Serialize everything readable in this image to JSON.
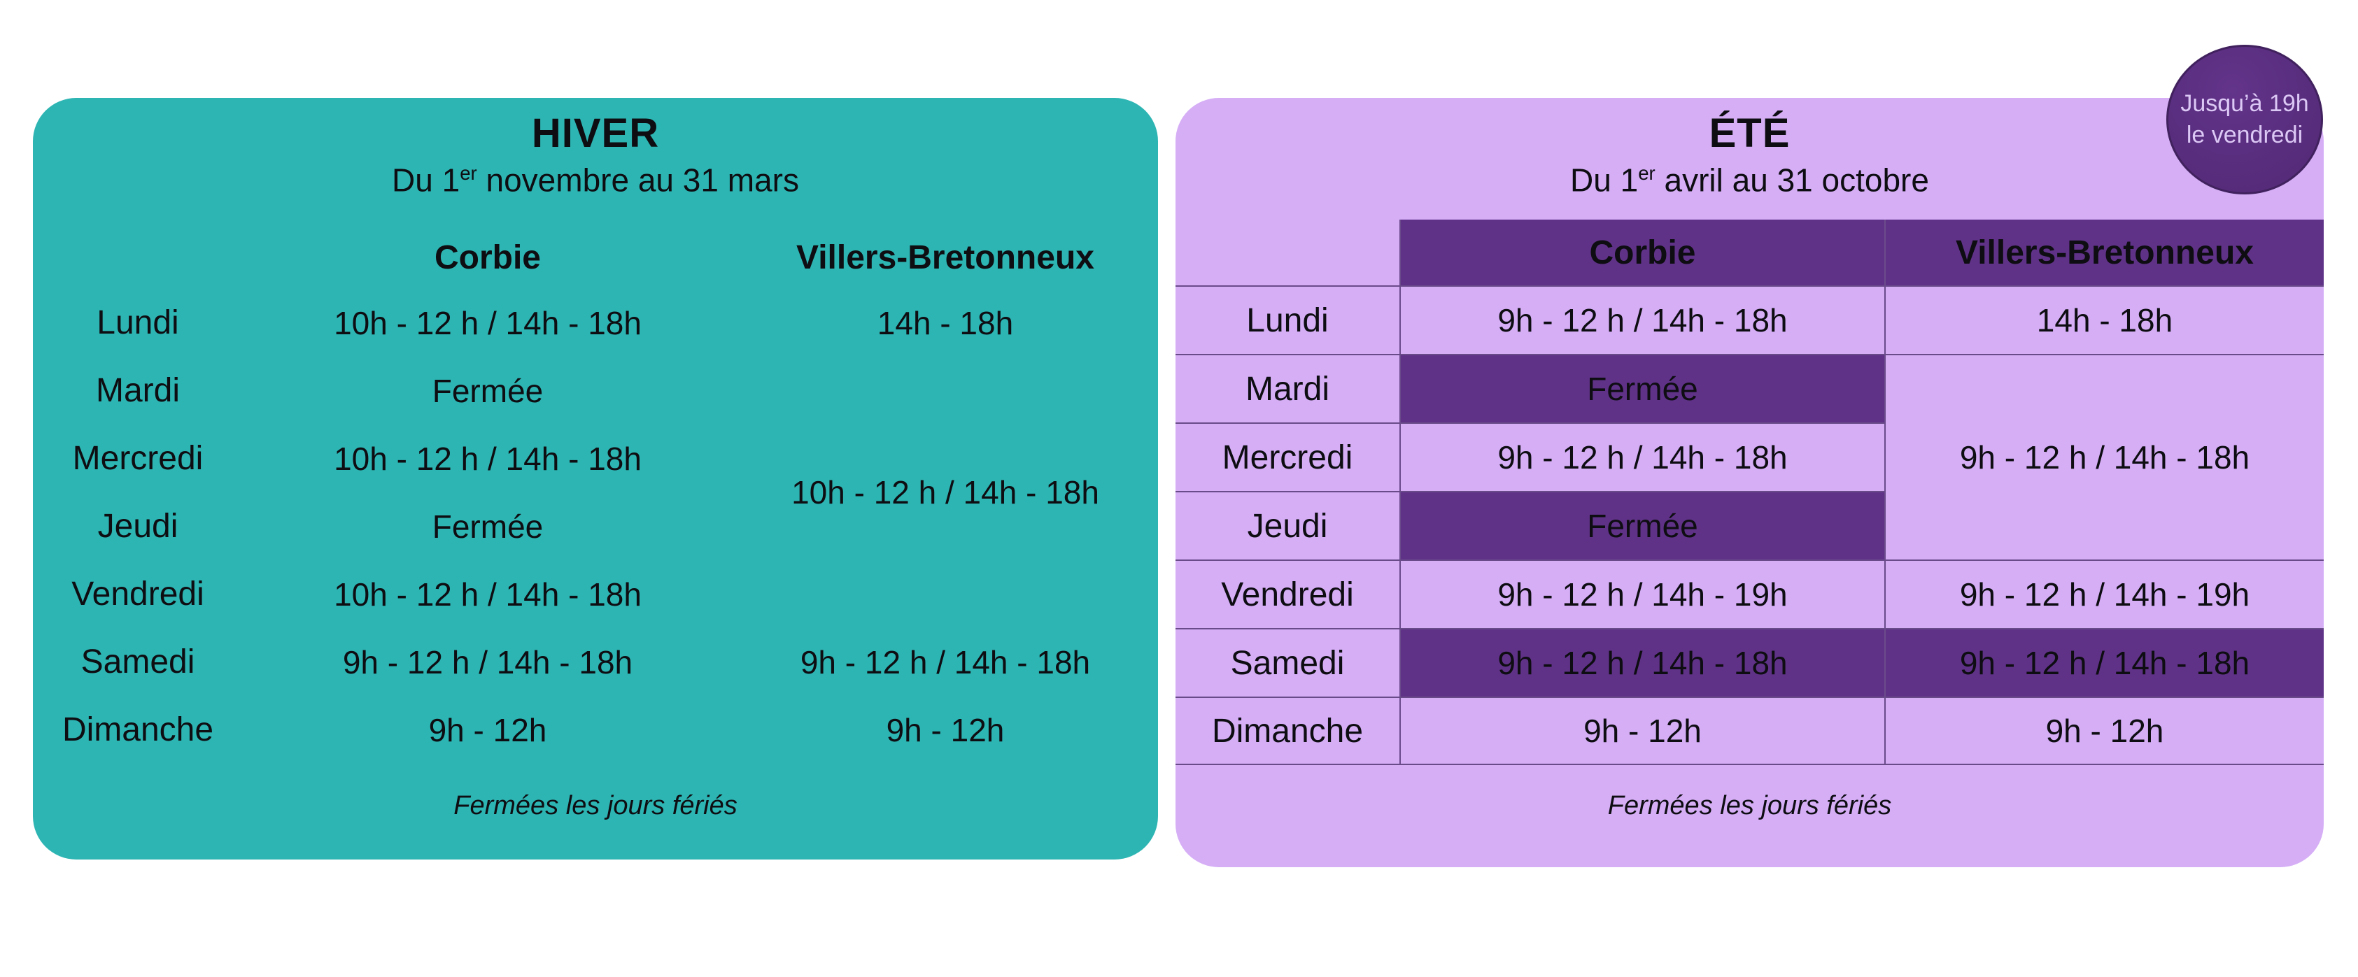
{
  "colors": {
    "teal": "#2db5b3",
    "lilac": "#d5aef6",
    "plum": "#5f3287",
    "line": "#6a4b8a",
    "badge_fill": "#532a75",
    "badge_border": "#41215e",
    "badge_text": "#dcc8f5",
    "text": "#0e0d12"
  },
  "winter": {
    "title": "HIVER",
    "subtitle": {
      "prefix": "Du 1",
      "sup": "er",
      "rest": " novembre au 31 mars"
    },
    "columns": {
      "corbie": "Corbie",
      "vb": "Villers-Bretonneux"
    },
    "rows": [
      {
        "day": "Lundi",
        "corbie": "10h - 12 h / 14h - 18h",
        "vb": "14h - 18h"
      },
      {
        "day": "Mardi",
        "corbie": "Fermée"
      },
      {
        "day": "Mercredi",
        "corbie": "10h - 12 h / 14h - 18h"
      },
      {
        "day": "Jeudi",
        "corbie": "Fermée"
      },
      {
        "day": "Vendredi",
        "corbie": "10h - 12 h / 14h - 18h"
      },
      {
        "day": "Samedi",
        "corbie": "9h - 12 h / 14h - 18h",
        "vb": "9h - 12 h / 14h - 18h"
      },
      {
        "day": "Dimanche",
        "corbie": "9h - 12h",
        "vb": "9h - 12h"
      }
    ],
    "vb_merged": "10h - 12 h / 14h - 18h",
    "footer": "Fermées les jours fériés"
  },
  "summer": {
    "title": "ÉTÉ",
    "subtitle": {
      "prefix": "Du 1",
      "sup": "er",
      "rest": " avril au 31 octobre"
    },
    "columns": {
      "corbie": "Corbie",
      "vb": "Villers-Bretonneux"
    },
    "rows": [
      {
        "day": "Lundi",
        "corbie": "9h - 12 h / 14h - 18h",
        "vb": "14h - 18h"
      },
      {
        "day": "Mardi",
        "corbie": "Fermée"
      },
      {
        "day": "Mercredi",
        "corbie": "9h - 12 h / 14h - 18h"
      },
      {
        "day": "Jeudi",
        "corbie": "Fermée"
      },
      {
        "day": "Vendredi",
        "corbie": "9h - 12 h / 14h - 19h",
        "vb": "9h - 12 h / 14h - 19h"
      },
      {
        "day": "Samedi",
        "corbie": "9h - 12 h / 14h - 18h",
        "vb": "9h - 12 h / 14h - 18h"
      },
      {
        "day": "Dimanche",
        "corbie": "9h - 12h",
        "vb": "9h - 12h"
      }
    ],
    "vb_merged": "9h - 12 h / 14h - 18h",
    "footer": "Fermées les jours fériés",
    "badge": {
      "line1": "Jusqu’à 19h",
      "line2": "le vendredi"
    }
  }
}
